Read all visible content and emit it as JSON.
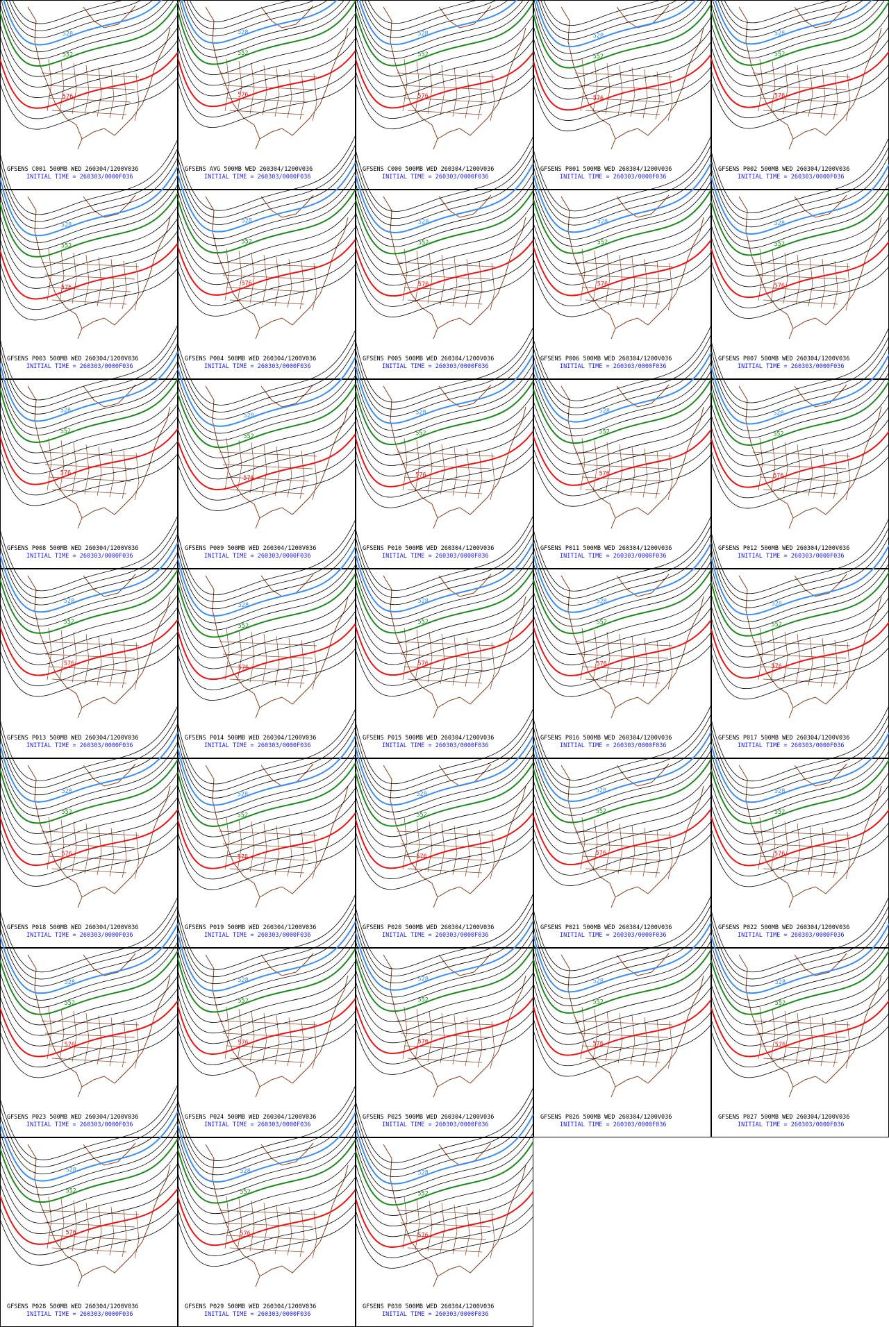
{
  "panels": [
    {
      "title": "GFSENS C001 500MB WED 260304/1200V036",
      "init": "INITIAL TIME = 260303/0000F036"
    },
    {
      "title": "GFSENS AVG 500MB WED 260304/1200V036",
      "init": "INITIAL TIME = 260303/0000F036"
    },
    {
      "title": "GFSENS C000 500MB WED 260304/1200V036",
      "init": "INITIAL TIME = 260303/0000F036"
    },
    {
      "title": "GFSENS P001 500MB WED 260304/1200V036",
      "init": "INITIAL TIME = 260303/0000F036"
    },
    {
      "title": "GFSENS P002 500MB WED 260304/1200V036",
      "init": "INITIAL TIME = 260303/0000F036"
    },
    {
      "title": "GFSENS P003 500MB WED 260304/1200V036",
      "init": "INITIAL TIME = 260303/0000F036"
    },
    {
      "title": "GFSENS P004 500MB WED 260304/1200V036",
      "init": "INITIAL TIME = 260303/0000F036"
    },
    {
      "title": "GFSENS P005 500MB WED 260304/1200V036",
      "init": "INITIAL TIME = 260303/0000F036"
    },
    {
      "title": "GFSENS P006 500MB WED 260304/1200V036",
      "init": "INITIAL TIME = 260303/0000F036"
    },
    {
      "title": "GFSENS P007 500MB WED 260304/1200V036",
      "init": "INITIAL TIME = 260303/0000F036"
    },
    {
      "title": "GFSENS P008 500MB WED 260304/1200V036",
      "init": "INITIAL TIME = 260303/0000F036"
    },
    {
      "title": "GFSENS P009 500MB WED 260304/1200V036",
      "init": "INITIAL TIME = 260303/0000F036"
    },
    {
      "title": "GFSENS P010 500MB WED 260304/1200V036",
      "init": "INITIAL TIME = 260303/0000F036"
    },
    {
      "title": "GFSENS P011 500MB WED 260304/1200V036",
      "init": "INITIAL TIME = 260303/0000F036"
    },
    {
      "title": "GFSENS P012 500MB WED 260304/1200V036",
      "init": "INITIAL TIME = 260303/0000F036"
    },
    {
      "title": "GFSENS P013 500MB WED 260304/1200V036",
      "init": "INITIAL TIME = 260303/0000F036"
    },
    {
      "title": "GFSENS P014 500MB WED 260304/1200V036",
      "init": "INITIAL TIME = 260303/0000F036"
    },
    {
      "title": "GFSENS P015 500MB WED 260304/1200V036",
      "init": "INITIAL TIME = 260303/0000F036"
    },
    {
      "title": "GFSENS P016 500MB WED 260304/1200V036",
      "init": "INITIAL TIME = 260303/0000F036"
    },
    {
      "title": "GFSENS P017 500MB WED 260304/1200V036",
      "init": "INITIAL TIME = 260303/0000F036"
    },
    {
      "title": "GFSENS P018 500MB WED 260304/1200V036",
      "init": "INITIAL TIME = 260303/0000F036"
    },
    {
      "title": "GFSENS P019 500MB WED 260304/1200V036",
      "init": "INITIAL TIME = 260303/0000F036"
    },
    {
      "title": "GFSENS P020 500MB WED 260304/1200V036",
      "init": "INITIAL TIME = 260303/0000F036"
    },
    {
      "title": "GFSENS P021 500MB WED 260304/1200V036",
      "init": "INITIAL TIME = 260303/0000F036"
    },
    {
      "title": "GFSENS P022 500MB WED 260304/1200V036",
      "init": "INITIAL TIME = 260303/0000F036"
    },
    {
      "title": "GFSENS P023 500MB WED 260304/1200V036",
      "init": "INITIAL TIME = 260303/0000F036"
    },
    {
      "title": "GFSENS P024 500MB WED 260304/1200V036",
      "init": "INITIAL TIME = 260303/0000F036"
    },
    {
      "title": "GFSENS P025 500MB WED 260304/1200V036",
      "init": "INITIAL TIME = 260303/0000F036"
    },
    {
      "title": "GFSENS P026 500MB WED 260304/1200V036",
      "init": "INITIAL TIME = 260303/0000F036"
    },
    {
      "title": "GFSENS P027 500MB WED 260304/1200V036",
      "init": "INITIAL TIME = 260303/0000F036"
    },
    {
      "title": "GFSENS P028 500MB WED 260304/1200V036",
      "init": "INITIAL TIME = 260303/0000F036"
    },
    {
      "title": "GFSENS P029 500MB WED 260304/1200V036",
      "init": "INITIAL TIME = 260303/0000F036"
    },
    {
      "title": "GFSENS P030 500MB WED 260304/1200V036",
      "init": "INITIAL TIME = 260303/0000F036"
    }
  ],
  "contour_labels": [
    "528",
    "552",
    "576"
  ]
}
